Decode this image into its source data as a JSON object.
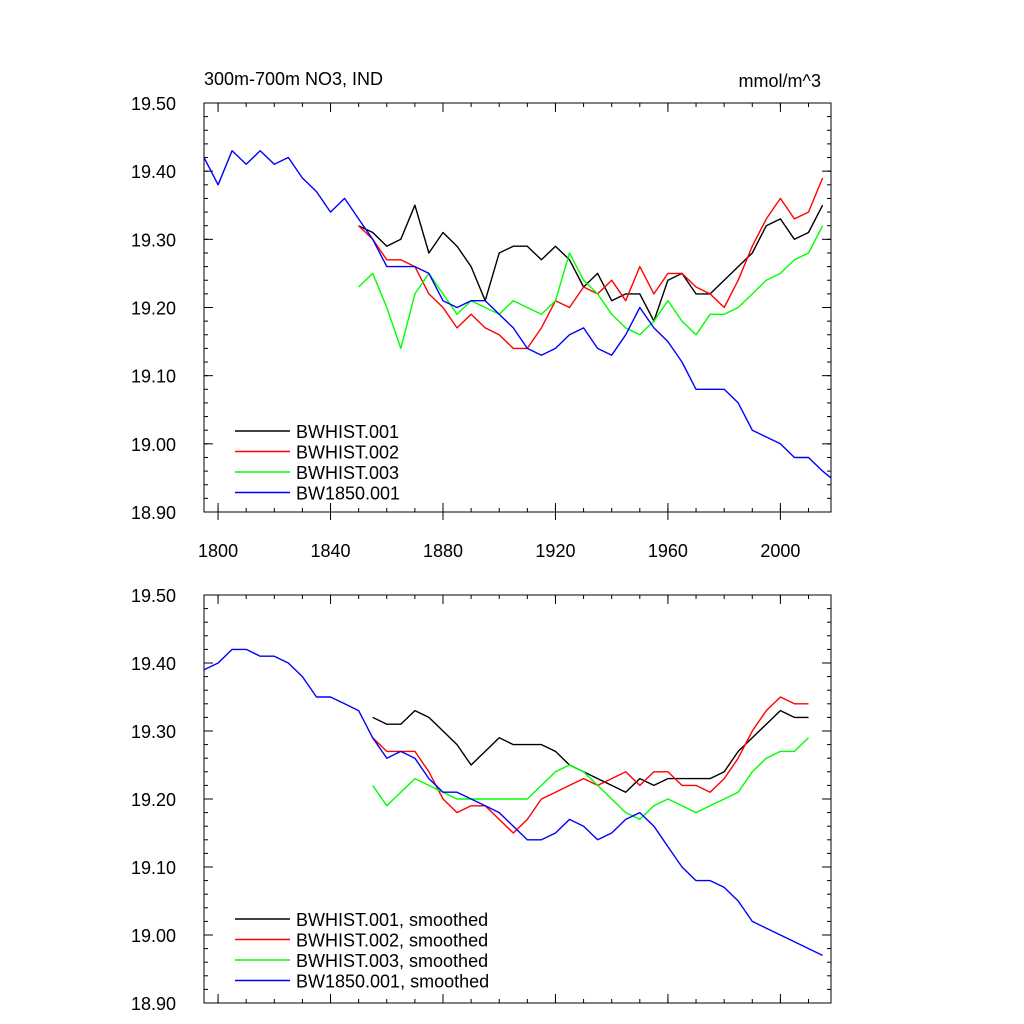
{
  "chart_data": [
    {
      "type": "line",
      "title": "300m-700m NO3, IND",
      "units": "mmol/m^3",
      "xlabel": "",
      "ylabel": "",
      "xlim": [
        1795,
        2018
      ],
      "ylim": [
        18.9,
        19.5
      ],
      "xticks": [
        1800,
        1840,
        1880,
        1920,
        1960,
        2000
      ],
      "xtick_labels": [
        "1800",
        "1840",
        "1880",
        "1920",
        "1960",
        "2000"
      ],
      "yticks": [
        18.9,
        19.0,
        19.1,
        19.2,
        19.3,
        19.4,
        19.5
      ],
      "ytick_labels": [
        "18.90",
        "19.00",
        "19.10",
        "19.20",
        "19.30",
        "19.40",
        "19.50"
      ],
      "legend_position": "bottom-left",
      "series": [
        {
          "name": "BWHIST.001",
          "color": "#000000",
          "x": [
            1850,
            1855,
            1860,
            1865,
            1870,
            1875,
            1880,
            1885,
            1890,
            1895,
            1900,
            1905,
            1910,
            1915,
            1920,
            1925,
            1930,
            1935,
            1940,
            1945,
            1950,
            1955,
            1960,
            1965,
            1970,
            1975,
            1980,
            1985,
            1990,
            1995,
            2000,
            2005,
            2010,
            2015
          ],
          "y": [
            19.32,
            19.31,
            19.29,
            19.3,
            19.35,
            19.28,
            19.31,
            19.29,
            19.26,
            19.21,
            19.28,
            19.29,
            19.29,
            19.27,
            19.29,
            19.27,
            19.23,
            19.25,
            19.21,
            19.22,
            19.22,
            19.18,
            19.24,
            19.25,
            19.22,
            19.22,
            19.24,
            19.26,
            19.28,
            19.32,
            19.33,
            19.3,
            19.31,
            19.35
          ]
        },
        {
          "name": "BWHIST.002",
          "color": "#ff0000",
          "x": [
            1850,
            1855,
            1860,
            1865,
            1870,
            1875,
            1880,
            1885,
            1890,
            1895,
            1900,
            1905,
            1910,
            1915,
            1920,
            1925,
            1930,
            1935,
            1940,
            1945,
            1950,
            1955,
            1960,
            1965,
            1970,
            1975,
            1980,
            1985,
            1990,
            1995,
            2000,
            2005,
            2010,
            2015
          ],
          "y": [
            19.32,
            19.3,
            19.27,
            19.27,
            19.26,
            19.22,
            19.2,
            19.17,
            19.19,
            19.17,
            19.16,
            19.14,
            19.14,
            19.17,
            19.21,
            19.2,
            19.23,
            19.22,
            19.24,
            19.21,
            19.26,
            19.22,
            19.25,
            19.25,
            19.23,
            19.22,
            19.2,
            19.24,
            19.29,
            19.33,
            19.36,
            19.33,
            19.34,
            19.39
          ]
        },
        {
          "name": "BWHIST.003",
          "color": "#00ff00",
          "x": [
            1850,
            1855,
            1860,
            1865,
            1870,
            1875,
            1880,
            1885,
            1890,
            1895,
            1900,
            1905,
            1910,
            1915,
            1920,
            1925,
            1930,
            1935,
            1940,
            1945,
            1950,
            1955,
            1960,
            1965,
            1970,
            1975,
            1980,
            1985,
            1990,
            1995,
            2000,
            2005,
            2010,
            2015
          ],
          "y": [
            19.23,
            19.25,
            19.2,
            19.14,
            19.22,
            19.25,
            19.22,
            19.19,
            19.21,
            19.2,
            19.19,
            19.21,
            19.2,
            19.19,
            19.21,
            19.28,
            19.24,
            19.22,
            19.19,
            19.17,
            19.16,
            19.18,
            19.21,
            19.18,
            19.16,
            19.19,
            19.19,
            19.2,
            19.22,
            19.24,
            19.25,
            19.27,
            19.28,
            19.32
          ]
        },
        {
          "name": "BW1850.001",
          "color": "#0000ff",
          "x": [
            1795,
            1800,
            1805,
            1810,
            1815,
            1820,
            1825,
            1830,
            1835,
            1840,
            1845,
            1850,
            1855,
            1860,
            1865,
            1870,
            1875,
            1880,
            1885,
            1890,
            1895,
            1900,
            1905,
            1910,
            1915,
            1920,
            1925,
            1930,
            1935,
            1940,
            1945,
            1950,
            1955,
            1960,
            1965,
            1970,
            1975,
            1980,
            1985,
            1990,
            1995,
            2000,
            2005,
            2010,
            2015,
            2018
          ],
          "y": [
            19.42,
            19.38,
            19.43,
            19.41,
            19.43,
            19.41,
            19.42,
            19.39,
            19.37,
            19.34,
            19.36,
            19.33,
            19.3,
            19.26,
            19.26,
            19.26,
            19.25,
            19.21,
            19.2,
            19.21,
            19.21,
            19.19,
            19.17,
            19.14,
            19.13,
            19.14,
            19.16,
            19.17,
            19.14,
            19.13,
            19.16,
            19.2,
            19.17,
            19.15,
            19.12,
            19.08,
            19.08,
            19.08,
            19.06,
            19.02,
            19.01,
            19.0,
            18.98,
            18.98,
            18.96,
            18.95
          ]
        }
      ]
    },
    {
      "type": "line",
      "title": "",
      "xlabel": "",
      "ylabel": "",
      "xlim": [
        1795,
        2018
      ],
      "ylim": [
        18.9,
        19.5
      ],
      "xticks": [
        1800,
        1840,
        1880,
        1920,
        1960,
        2000
      ],
      "yticks": [
        18.9,
        19.0,
        19.1,
        19.2,
        19.3,
        19.4,
        19.5
      ],
      "ytick_labels": [
        "18.90",
        "19.00",
        "19.10",
        "19.20",
        "19.30",
        "19.40",
        "19.50"
      ],
      "legend_position": "bottom-left",
      "series": [
        {
          "name": "BWHIST.001, smoothed",
          "color": "#000000",
          "x": [
            1855,
            1860,
            1865,
            1870,
            1875,
            1880,
            1885,
            1890,
            1895,
            1900,
            1905,
            1910,
            1915,
            1920,
            1925,
            1930,
            1935,
            1940,
            1945,
            1950,
            1955,
            1960,
            1965,
            1970,
            1975,
            1980,
            1985,
            1990,
            1995,
            2000,
            2005,
            2010
          ],
          "y": [
            19.32,
            19.31,
            19.31,
            19.33,
            19.32,
            19.3,
            19.28,
            19.25,
            19.27,
            19.29,
            19.28,
            19.28,
            19.28,
            19.27,
            19.25,
            19.24,
            19.23,
            19.22,
            19.21,
            19.23,
            19.22,
            19.23,
            19.23,
            19.23,
            19.23,
            19.24,
            19.27,
            19.29,
            19.31,
            19.33,
            19.32,
            19.32
          ]
        },
        {
          "name": "BWHIST.002, smoothed",
          "color": "#ff0000",
          "x": [
            1855,
            1860,
            1865,
            1870,
            1875,
            1880,
            1885,
            1890,
            1895,
            1900,
            1905,
            1910,
            1915,
            1920,
            1925,
            1930,
            1935,
            1940,
            1945,
            1950,
            1955,
            1960,
            1965,
            1970,
            1975,
            1980,
            1985,
            1990,
            1995,
            2000,
            2005,
            2010
          ],
          "y": [
            19.29,
            19.27,
            19.27,
            19.27,
            19.24,
            19.2,
            19.18,
            19.19,
            19.19,
            19.17,
            19.15,
            19.17,
            19.2,
            19.21,
            19.22,
            19.23,
            19.22,
            19.23,
            19.24,
            19.22,
            19.24,
            19.24,
            19.22,
            19.22,
            19.21,
            19.23,
            19.26,
            19.3,
            19.33,
            19.35,
            19.34,
            19.34
          ]
        },
        {
          "name": "BWHIST.003, smoothed",
          "color": "#00ff00",
          "x": [
            1855,
            1860,
            1865,
            1870,
            1875,
            1880,
            1885,
            1890,
            1895,
            1900,
            1905,
            1910,
            1915,
            1920,
            1925,
            1930,
            1935,
            1940,
            1945,
            1950,
            1955,
            1960,
            1965,
            1970,
            1975,
            1980,
            1985,
            1990,
            1995,
            2000,
            2005,
            2010
          ],
          "y": [
            19.22,
            19.19,
            19.21,
            19.23,
            19.22,
            19.21,
            19.2,
            19.2,
            19.2,
            19.2,
            19.2,
            19.2,
            19.22,
            19.24,
            19.25,
            19.24,
            19.22,
            19.2,
            19.18,
            19.17,
            19.19,
            19.2,
            19.19,
            19.18,
            19.19,
            19.2,
            19.21,
            19.24,
            19.26,
            19.27,
            19.27,
            19.29
          ]
        },
        {
          "name": "BW1850.001, smoothed",
          "color": "#0000ff",
          "x": [
            1795,
            1800,
            1805,
            1810,
            1815,
            1820,
            1825,
            1830,
            1835,
            1840,
            1845,
            1850,
            1855,
            1860,
            1865,
            1870,
            1875,
            1880,
            1885,
            1890,
            1895,
            1900,
            1905,
            1910,
            1915,
            1920,
            1925,
            1930,
            1935,
            1940,
            1945,
            1950,
            1955,
            1960,
            1965,
            1970,
            1975,
            1980,
            1985,
            1990,
            1995,
            2000,
            2005,
            2010,
            2015
          ],
          "y": [
            19.39,
            19.4,
            19.42,
            19.42,
            19.41,
            19.41,
            19.4,
            19.38,
            19.35,
            19.35,
            19.34,
            19.33,
            19.29,
            19.26,
            19.27,
            19.26,
            19.23,
            19.21,
            19.21,
            19.2,
            19.19,
            19.18,
            19.16,
            19.14,
            19.14,
            19.15,
            19.17,
            19.16,
            19.14,
            19.15,
            19.17,
            19.18,
            19.16,
            19.13,
            19.1,
            19.08,
            19.08,
            19.07,
            19.05,
            19.02,
            19.01,
            19.0,
            18.99,
            18.98,
            18.97
          ]
        }
      ]
    }
  ]
}
